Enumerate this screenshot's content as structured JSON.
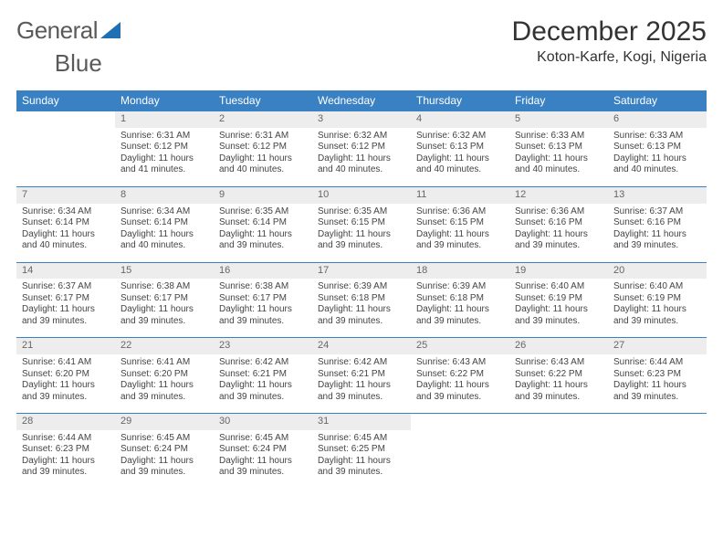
{
  "brand": {
    "part1": "General",
    "part2": "Blue",
    "logo_color": "#1f6fb2",
    "text_color": "#5a5a5a"
  },
  "header": {
    "title": "December 2025",
    "location": "Koton-Karfe, Kogi, Nigeria"
  },
  "style": {
    "header_bg": "#3a81c4",
    "header_fg": "#ffffff",
    "daynum_bg": "#ededed",
    "daynum_fg": "#666666",
    "row_border": "#3a81c4",
    "body_text": "#444444",
    "title_fontsize": 30,
    "location_fontsize": 16,
    "dayhead_fontsize": 12,
    "cell_fontsize": 10
  },
  "calendar": {
    "day_names": [
      "Sunday",
      "Monday",
      "Tuesday",
      "Wednesday",
      "Thursday",
      "Friday",
      "Saturday"
    ],
    "weeks": [
      [
        null,
        {
          "n": "1",
          "sunrise": "Sunrise: 6:31 AM",
          "sunset": "Sunset: 6:12 PM",
          "daylight": "Daylight: 11 hours and 41 minutes."
        },
        {
          "n": "2",
          "sunrise": "Sunrise: 6:31 AM",
          "sunset": "Sunset: 6:12 PM",
          "daylight": "Daylight: 11 hours and 40 minutes."
        },
        {
          "n": "3",
          "sunrise": "Sunrise: 6:32 AM",
          "sunset": "Sunset: 6:12 PM",
          "daylight": "Daylight: 11 hours and 40 minutes."
        },
        {
          "n": "4",
          "sunrise": "Sunrise: 6:32 AM",
          "sunset": "Sunset: 6:13 PM",
          "daylight": "Daylight: 11 hours and 40 minutes."
        },
        {
          "n": "5",
          "sunrise": "Sunrise: 6:33 AM",
          "sunset": "Sunset: 6:13 PM",
          "daylight": "Daylight: 11 hours and 40 minutes."
        },
        {
          "n": "6",
          "sunrise": "Sunrise: 6:33 AM",
          "sunset": "Sunset: 6:13 PM",
          "daylight": "Daylight: 11 hours and 40 minutes."
        }
      ],
      [
        {
          "n": "7",
          "sunrise": "Sunrise: 6:34 AM",
          "sunset": "Sunset: 6:14 PM",
          "daylight": "Daylight: 11 hours and 40 minutes."
        },
        {
          "n": "8",
          "sunrise": "Sunrise: 6:34 AM",
          "sunset": "Sunset: 6:14 PM",
          "daylight": "Daylight: 11 hours and 40 minutes."
        },
        {
          "n": "9",
          "sunrise": "Sunrise: 6:35 AM",
          "sunset": "Sunset: 6:14 PM",
          "daylight": "Daylight: 11 hours and 39 minutes."
        },
        {
          "n": "10",
          "sunrise": "Sunrise: 6:35 AM",
          "sunset": "Sunset: 6:15 PM",
          "daylight": "Daylight: 11 hours and 39 minutes."
        },
        {
          "n": "11",
          "sunrise": "Sunrise: 6:36 AM",
          "sunset": "Sunset: 6:15 PM",
          "daylight": "Daylight: 11 hours and 39 minutes."
        },
        {
          "n": "12",
          "sunrise": "Sunrise: 6:36 AM",
          "sunset": "Sunset: 6:16 PM",
          "daylight": "Daylight: 11 hours and 39 minutes."
        },
        {
          "n": "13",
          "sunrise": "Sunrise: 6:37 AM",
          "sunset": "Sunset: 6:16 PM",
          "daylight": "Daylight: 11 hours and 39 minutes."
        }
      ],
      [
        {
          "n": "14",
          "sunrise": "Sunrise: 6:37 AM",
          "sunset": "Sunset: 6:17 PM",
          "daylight": "Daylight: 11 hours and 39 minutes."
        },
        {
          "n": "15",
          "sunrise": "Sunrise: 6:38 AM",
          "sunset": "Sunset: 6:17 PM",
          "daylight": "Daylight: 11 hours and 39 minutes."
        },
        {
          "n": "16",
          "sunrise": "Sunrise: 6:38 AM",
          "sunset": "Sunset: 6:17 PM",
          "daylight": "Daylight: 11 hours and 39 minutes."
        },
        {
          "n": "17",
          "sunrise": "Sunrise: 6:39 AM",
          "sunset": "Sunset: 6:18 PM",
          "daylight": "Daylight: 11 hours and 39 minutes."
        },
        {
          "n": "18",
          "sunrise": "Sunrise: 6:39 AM",
          "sunset": "Sunset: 6:18 PM",
          "daylight": "Daylight: 11 hours and 39 minutes."
        },
        {
          "n": "19",
          "sunrise": "Sunrise: 6:40 AM",
          "sunset": "Sunset: 6:19 PM",
          "daylight": "Daylight: 11 hours and 39 minutes."
        },
        {
          "n": "20",
          "sunrise": "Sunrise: 6:40 AM",
          "sunset": "Sunset: 6:19 PM",
          "daylight": "Daylight: 11 hours and 39 minutes."
        }
      ],
      [
        {
          "n": "21",
          "sunrise": "Sunrise: 6:41 AM",
          "sunset": "Sunset: 6:20 PM",
          "daylight": "Daylight: 11 hours and 39 minutes."
        },
        {
          "n": "22",
          "sunrise": "Sunrise: 6:41 AM",
          "sunset": "Sunset: 6:20 PM",
          "daylight": "Daylight: 11 hours and 39 minutes."
        },
        {
          "n": "23",
          "sunrise": "Sunrise: 6:42 AM",
          "sunset": "Sunset: 6:21 PM",
          "daylight": "Daylight: 11 hours and 39 minutes."
        },
        {
          "n": "24",
          "sunrise": "Sunrise: 6:42 AM",
          "sunset": "Sunset: 6:21 PM",
          "daylight": "Daylight: 11 hours and 39 minutes."
        },
        {
          "n": "25",
          "sunrise": "Sunrise: 6:43 AM",
          "sunset": "Sunset: 6:22 PM",
          "daylight": "Daylight: 11 hours and 39 minutes."
        },
        {
          "n": "26",
          "sunrise": "Sunrise: 6:43 AM",
          "sunset": "Sunset: 6:22 PM",
          "daylight": "Daylight: 11 hours and 39 minutes."
        },
        {
          "n": "27",
          "sunrise": "Sunrise: 6:44 AM",
          "sunset": "Sunset: 6:23 PM",
          "daylight": "Daylight: 11 hours and 39 minutes."
        }
      ],
      [
        {
          "n": "28",
          "sunrise": "Sunrise: 6:44 AM",
          "sunset": "Sunset: 6:23 PM",
          "daylight": "Daylight: 11 hours and 39 minutes."
        },
        {
          "n": "29",
          "sunrise": "Sunrise: 6:45 AM",
          "sunset": "Sunset: 6:24 PM",
          "daylight": "Daylight: 11 hours and 39 minutes."
        },
        {
          "n": "30",
          "sunrise": "Sunrise: 6:45 AM",
          "sunset": "Sunset: 6:24 PM",
          "daylight": "Daylight: 11 hours and 39 minutes."
        },
        {
          "n": "31",
          "sunrise": "Sunrise: 6:45 AM",
          "sunset": "Sunset: 6:25 PM",
          "daylight": "Daylight: 11 hours and 39 minutes."
        },
        null,
        null,
        null
      ]
    ]
  }
}
